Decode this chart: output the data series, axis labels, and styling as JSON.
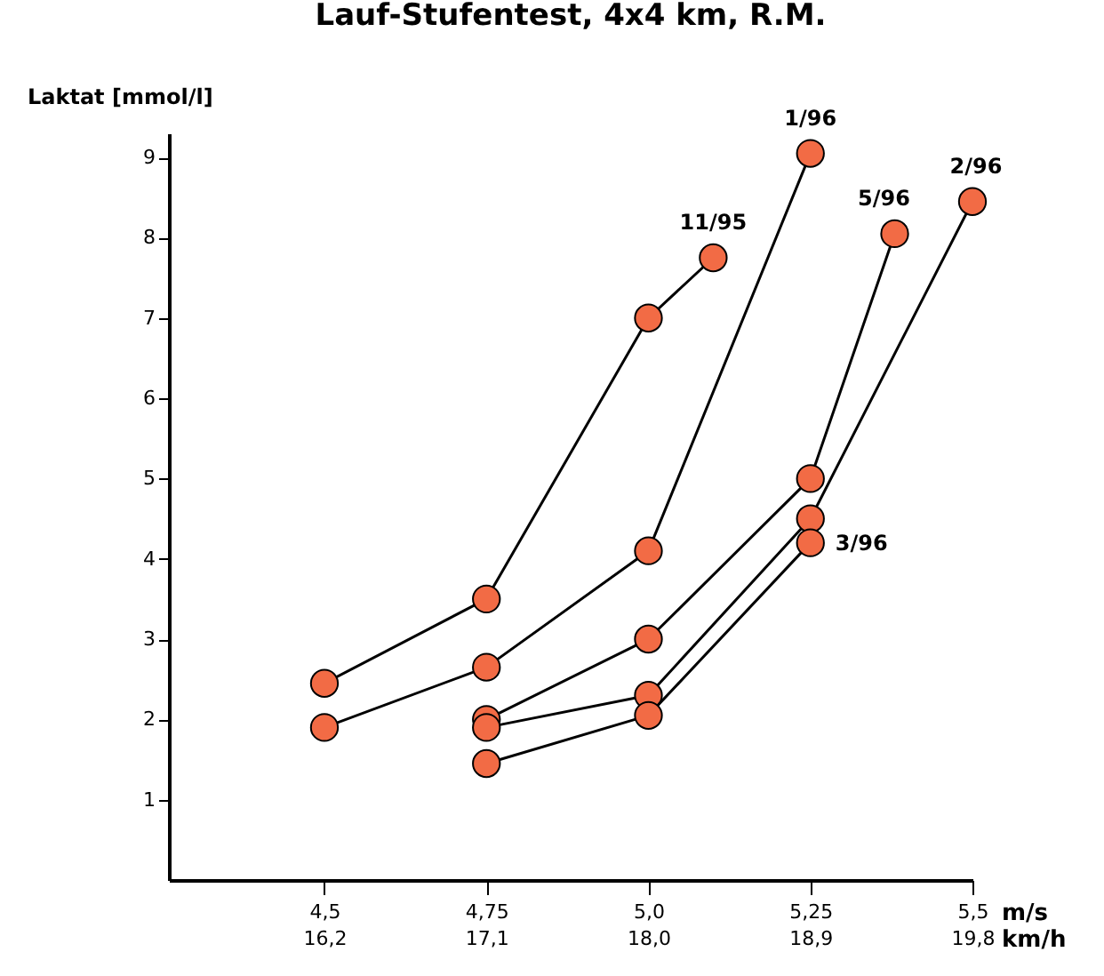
{
  "chart_data": {
    "type": "line",
    "title": "Lauf-Stufentest, 4x4 km, R.M.",
    "ylabel": "Laktat [mmol/l]",
    "xlabel": "m/s",
    "x2label": "km/h",
    "x2lim": [
      15.336,
      19.8
    ],
    "x2ticks": [
      {
        "value": 16.2,
        "label": "16,2"
      },
      {
        "value": 17.1,
        "label": "17,1"
      },
      {
        "value": 18.0,
        "label": "18,0"
      },
      {
        "value": 18.9,
        "label": "18,9"
      },
      {
        "value": 19.8,
        "label": "19,8"
      }
    ],
    "xlim": [
      4.26,
      5.5
    ],
    "ylim": [
      0,
      9.3
    ],
    "yticks": [
      1,
      2,
      3,
      4,
      5,
      6,
      7,
      8,
      9
    ],
    "xticks": [
      {
        "value": 4.5,
        "label": "4,5"
      },
      {
        "value": 4.75,
        "label": "4,75"
      },
      {
        "value": 5.0,
        "label": "5,0"
      },
      {
        "value": 5.25,
        "label": "5,25"
      },
      {
        "value": 5.5,
        "label": "5,5"
      }
    ],
    "grid": false,
    "legend": false,
    "marker": "circle",
    "line_style": "solid",
    "series": [
      {
        "name": "11/95",
        "color": "#f26b45",
        "x": [
          4.5,
          4.75,
          5.0,
          5.1
        ],
        "values": [
          2.45,
          3.5,
          7.0,
          7.75
        ]
      },
      {
        "name": "1/96",
        "color": "#f26b45",
        "x": [
          4.5,
          4.75,
          5.0,
          5.25
        ],
        "values": [
          1.9,
          2.65,
          4.1,
          9.05
        ]
      },
      {
        "name": "5/96",
        "color": "#f26b45",
        "x": [
          4.75,
          5.0,
          5.25,
          5.38
        ],
        "values": [
          2.0,
          3.0,
          5.0,
          8.05
        ]
      },
      {
        "name": "2/96",
        "color": "#f26b45",
        "x": [
          4.75,
          5.0,
          5.25,
          5.5
        ],
        "values": [
          1.9,
          2.3,
          4.5,
          8.45
        ]
      },
      {
        "name": "3/96",
        "color": "#f26b45",
        "x": [
          4.75,
          5.0,
          5.25
        ],
        "values": [
          1.45,
          2.05,
          4.2
        ]
      }
    ]
  }
}
